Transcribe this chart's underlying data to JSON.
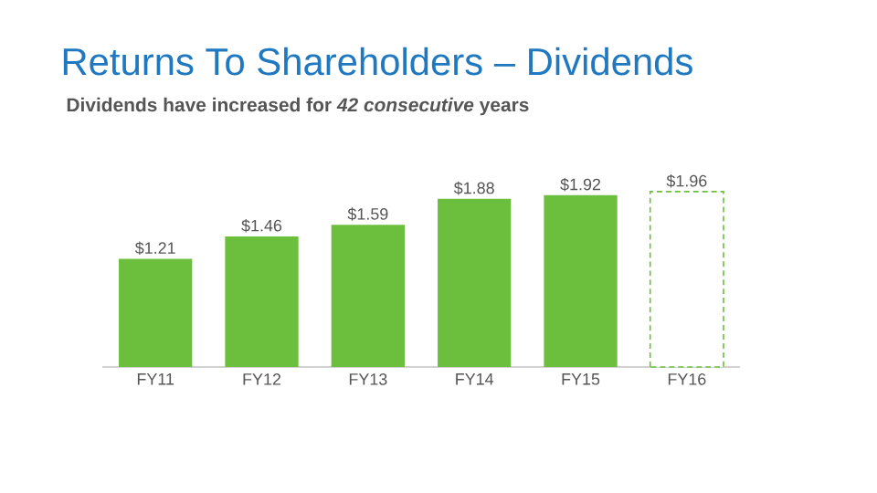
{
  "chart_data": {
    "type": "bar",
    "title": "Returns To Shareholders – Dividends",
    "subtitle": "Dividends have increased for *42 consecutive* years",
    "categories": [
      "FY11",
      "FY12",
      "FY13",
      "FY14",
      "FY15",
      "FY16"
    ],
    "values": [
      1.21,
      1.46,
      1.59,
      1.88,
      1.92,
      1.96
    ],
    "value_labels": [
      "$1.21",
      "$1.46",
      "$1.59",
      "$1.88",
      "$1.92",
      "$1.96"
    ],
    "color": "#6cbf3c",
    "colors": [
      "#6cbf3c",
      "#6cbf3c",
      "#6cbf3c",
      "#6cbf3c",
      "#6cbf3c",
      "#ffffff"
    ]
  }
}
